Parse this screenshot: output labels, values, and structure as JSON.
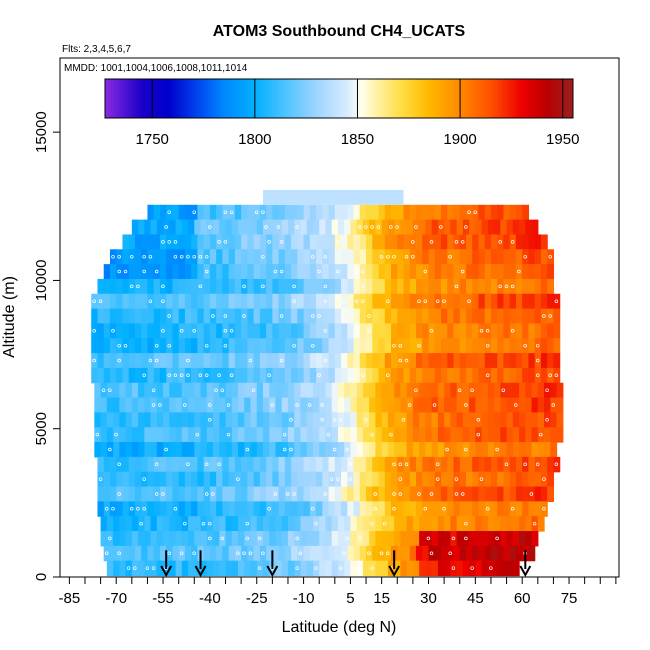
{
  "chart_data": {
    "type": "heatmap",
    "title": "ATOM3 Southbound CH4_UCATS",
    "subtitle_lines": [
      "Flts: 2,3,4,5,6,7",
      "MMDD: 1001,1004,1006,1008,1011,1014"
    ],
    "xlabel": "Latitude (deg N)",
    "ylabel": "Altitude (m)",
    "xlim": [
      -88,
      91
    ],
    "ylim": [
      0,
      17500
    ],
    "x_ticks": [
      -85,
      -70,
      -55,
      -40,
      -25,
      -10,
      5,
      15,
      30,
      45,
      60,
      75
    ],
    "x_minor_ticks": [
      -80,
      -75,
      -65,
      -60,
      -50,
      -45,
      -35,
      -30,
      -20,
      -15,
      -5,
      0,
      10,
      20,
      25,
      35,
      40,
      50,
      55,
      65,
      70,
      80,
      85,
      90
    ],
    "y_ticks": [
      0,
      5000,
      10000,
      15000
    ],
    "colorbar": {
      "min": 1727,
      "max": 1955,
      "ticks": [
        1750,
        1800,
        1850,
        1900,
        1950
      ],
      "divider_values": [
        1750,
        1800,
        1850,
        1900,
        1950
      ],
      "stops": [
        {
          "value": 1727,
          "color": "#8a2be2"
        },
        {
          "value": 1745,
          "color": "#1a00c8"
        },
        {
          "value": 1758,
          "color": "#0000cc"
        },
        {
          "value": 1772,
          "color": "#0044ee"
        },
        {
          "value": 1785,
          "color": "#0088ff"
        },
        {
          "value": 1800,
          "color": "#00b0ff"
        },
        {
          "value": 1815,
          "color": "#4fc3ff"
        },
        {
          "value": 1830,
          "color": "#9ed4ff"
        },
        {
          "value": 1845,
          "color": "#d8ecff"
        },
        {
          "value": 1852,
          "color": "#ffffee"
        },
        {
          "value": 1860,
          "color": "#fff0a0"
        },
        {
          "value": 1872,
          "color": "#ffdc40"
        },
        {
          "value": 1885,
          "color": "#ffb800"
        },
        {
          "value": 1900,
          "color": "#ff8800"
        },
        {
          "value": 1915,
          "color": "#ff5000"
        },
        {
          "value": 1930,
          "color": "#ee0000"
        },
        {
          "value": 1942,
          "color": "#bb0000"
        },
        {
          "value": 1955,
          "color": "#9a2020"
        }
      ]
    },
    "profile_arrows_lat": [
      -54,
      -43,
      -20,
      19,
      61
    ],
    "altitude_bands": [
      {
        "alt": 12300,
        "lat_min": -60,
        "lat_max": 62
      },
      {
        "alt": 11800,
        "lat_min": -65,
        "lat_max": 65
      },
      {
        "alt": 11300,
        "lat_min": -68,
        "lat_max": 67
      },
      {
        "alt": 10800,
        "lat_min": -72,
        "lat_max": 69
      },
      {
        "alt": 10300,
        "lat_min": -74,
        "lat_max": 69
      },
      {
        "alt": 9800,
        "lat_min": -76,
        "lat_max": 70
      },
      {
        "alt": 9300,
        "lat_min": -78,
        "lat_max": 71
      },
      {
        "alt": 8800,
        "lat_min": -78,
        "lat_max": 71
      },
      {
        "alt": 8300,
        "lat_min": -78,
        "lat_max": 71
      },
      {
        "alt": 7800,
        "lat_min": -78,
        "lat_max": 72
      },
      {
        "alt": 7300,
        "lat_min": -78,
        "lat_max": 72
      },
      {
        "alt": 6800,
        "lat_min": -78,
        "lat_max": 72
      },
      {
        "alt": 6300,
        "lat_min": -77,
        "lat_max": 72
      },
      {
        "alt": 5800,
        "lat_min": -77,
        "lat_max": 72
      },
      {
        "alt": 5300,
        "lat_min": -77,
        "lat_max": 72
      },
      {
        "alt": 4800,
        "lat_min": -77,
        "lat_max": 72
      },
      {
        "alt": 4300,
        "lat_min": -77,
        "lat_max": 71
      },
      {
        "alt": 3800,
        "lat_min": -76,
        "lat_max": 71
      },
      {
        "alt": 3300,
        "lat_min": -76,
        "lat_max": 70
      },
      {
        "alt": 2800,
        "lat_min": -76,
        "lat_max": 69
      },
      {
        "alt": 2300,
        "lat_min": -76,
        "lat_max": 68
      },
      {
        "alt": 1800,
        "lat_min": -75,
        "lat_max": 67
      },
      {
        "alt": 1300,
        "lat_min": -75,
        "lat_max": 65
      },
      {
        "alt": 800,
        "lat_min": -74,
        "lat_max": 63
      },
      {
        "alt": 300,
        "lat_min": -73,
        "lat_max": 58
      }
    ],
    "top_band": {
      "alt": 12800,
      "lat_min": -23,
      "lat_max": 22,
      "value": 1838
    },
    "latitude_profile": [
      {
        "lat": -78,
        "value": 1806
      },
      {
        "lat": -60,
        "value": 1808
      },
      {
        "lat": -45,
        "value": 1810
      },
      {
        "lat": -30,
        "value": 1815
      },
      {
        "lat": -15,
        "value": 1822
      },
      {
        "lat": -5,
        "value": 1832
      },
      {
        "lat": 3,
        "value": 1845
      },
      {
        "lat": 8,
        "value": 1860
      },
      {
        "lat": 13,
        "value": 1875
      },
      {
        "lat": 20,
        "value": 1892
      },
      {
        "lat": 30,
        "value": 1903
      },
      {
        "lat": 45,
        "value": 1908
      },
      {
        "lat": 60,
        "value": 1912
      },
      {
        "lat": 72,
        "value": 1915
      }
    ]
  }
}
